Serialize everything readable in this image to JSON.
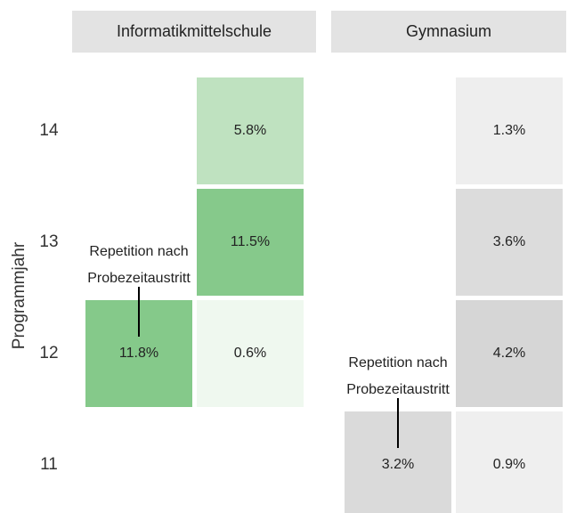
{
  "chart_data": {
    "type": "heatmap",
    "y_label": "Programmjahr",
    "categories": [
      "11",
      "12",
      "13",
      "14"
    ],
    "facets": [
      {
        "title": "Informatikmittelschule",
        "annotation": [
          "Repetition nach",
          "Probezeitaustritt"
        ],
        "values": [
          [
            null,
            null
          ],
          [
            11.8,
            0.6
          ],
          [
            null,
            11.5
          ],
          [
            null,
            5.8
          ]
        ],
        "value_labels": [
          [
            null,
            null
          ],
          [
            "11.8%",
            "0.6%"
          ],
          [
            null,
            "11.5%"
          ],
          [
            null,
            "5.8%"
          ]
        ],
        "colors": [
          [
            null,
            null
          ],
          [
            "#85c98a",
            "#eff8ef"
          ],
          [
            null,
            "#86c98b"
          ],
          [
            null,
            "#bfe2c0"
          ]
        ]
      },
      {
        "title": "Gymnasium",
        "annotation": [
          "Repetition nach",
          "Probezeitaustritt"
        ],
        "values": [
          [
            3.2,
            0.9
          ],
          [
            null,
            4.2
          ],
          [
            null,
            3.6
          ],
          [
            null,
            1.3
          ]
        ],
        "value_labels": [
          [
            "3.2%",
            "0.9%"
          ],
          [
            null,
            "4.2%"
          ],
          [
            null,
            "3.6%"
          ],
          [
            null,
            "1.3%"
          ]
        ],
        "colors": [
          [
            "#dadada",
            "#efefef"
          ],
          [
            null,
            "#d6d6d6"
          ],
          [
            null,
            "#dcdcdc"
          ],
          [
            null,
            "#eeeeee"
          ]
        ]
      }
    ]
  }
}
